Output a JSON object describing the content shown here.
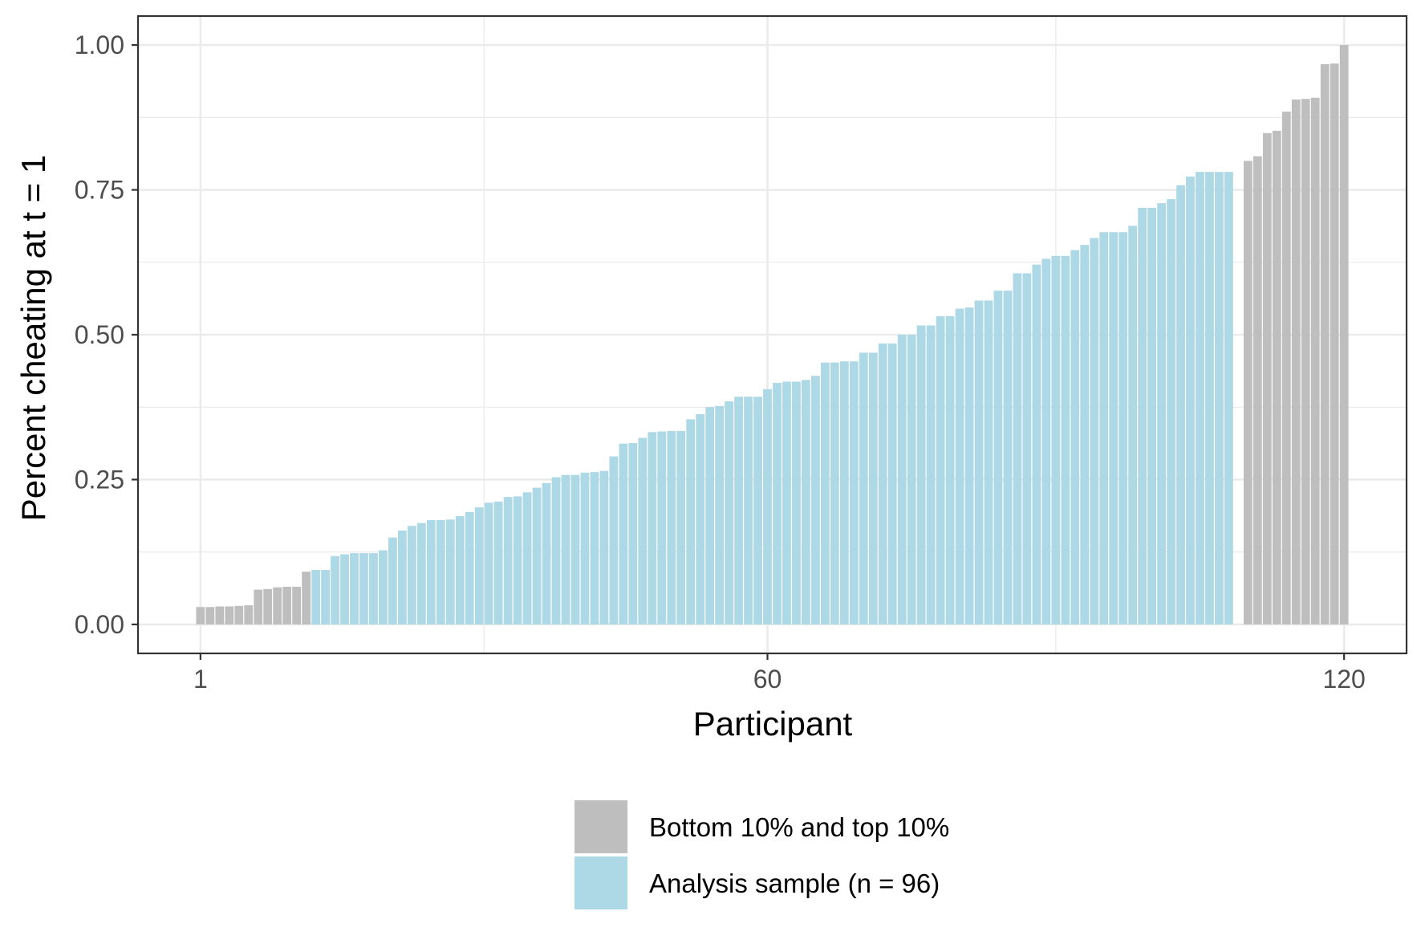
{
  "chart_data": {
    "type": "bar",
    "xlabel": "Participant",
    "ylabel": "Percent cheating at t = 1",
    "x_ticks": [
      "1",
      "60",
      "120"
    ],
    "y_ticks": [
      "0.00",
      "0.25",
      "0.50",
      "0.75",
      "1.00"
    ],
    "xlim": [
      -5.5,
      126.5
    ],
    "ylim": [
      -0.05,
      1.05
    ],
    "grid": true,
    "legend_position": "bottom",
    "series": [
      {
        "name": "Bottom 10% and top 10%",
        "color": "#bebebe",
        "x": [
          1,
          2,
          3,
          4,
          5,
          6,
          7,
          8,
          9,
          10,
          11,
          12,
          110,
          111,
          112,
          113,
          114,
          115,
          116,
          117,
          118,
          119,
          120
        ],
        "values": [
          0.03,
          0.03,
          0.031,
          0.031,
          0.032,
          0.033,
          0.06,
          0.061,
          0.064,
          0.065,
          0.065,
          0.091,
          0.8,
          0.808,
          0.848,
          0.852,
          0.885,
          0.906,
          0.907,
          0.909,
          0.967,
          0.968,
          1.0
        ]
      },
      {
        "name": "Analysis sample (n = 96)",
        "color": "#add8e6",
        "x": [
          13,
          14,
          15,
          16,
          17,
          18,
          19,
          20,
          21,
          22,
          23,
          24,
          25,
          26,
          27,
          28,
          29,
          30,
          31,
          32,
          33,
          34,
          35,
          36,
          37,
          38,
          39,
          40,
          41,
          42,
          43,
          44,
          45,
          46,
          47,
          48,
          49,
          50,
          51,
          52,
          53,
          54,
          55,
          56,
          57,
          58,
          59,
          60,
          61,
          62,
          63,
          64,
          65,
          66,
          67,
          68,
          69,
          70,
          71,
          72,
          73,
          74,
          75,
          76,
          77,
          78,
          79,
          80,
          81,
          82,
          83,
          84,
          85,
          86,
          87,
          88,
          89,
          90,
          91,
          92,
          93,
          94,
          95,
          96,
          97,
          98,
          99,
          100,
          101,
          102,
          103,
          104,
          105,
          106,
          107,
          108
        ],
        "values": [
          0.094,
          0.094,
          0.118,
          0.121,
          0.123,
          0.123,
          0.123,
          0.128,
          0.15,
          0.162,
          0.17,
          0.175,
          0.18,
          0.18,
          0.181,
          0.187,
          0.194,
          0.202,
          0.21,
          0.212,
          0.22,
          0.221,
          0.228,
          0.236,
          0.244,
          0.254,
          0.258,
          0.258,
          0.262,
          0.263,
          0.265,
          0.29,
          0.312,
          0.313,
          0.322,
          0.332,
          0.333,
          0.334,
          0.334,
          0.354,
          0.363,
          0.375,
          0.377,
          0.385,
          0.393,
          0.393,
          0.393,
          0.406,
          0.417,
          0.419,
          0.419,
          0.422,
          0.429,
          0.452,
          0.452,
          0.454,
          0.454,
          0.469,
          0.469,
          0.485,
          0.485,
          0.5,
          0.5,
          0.516,
          0.516,
          0.532,
          0.532,
          0.545,
          0.547,
          0.559,
          0.559,
          0.576,
          0.576,
          0.606,
          0.606,
          0.621,
          0.631,
          0.636,
          0.636,
          0.646,
          0.655,
          0.667,
          0.677,
          0.677,
          0.677,
          0.688,
          0.719,
          0.719,
          0.727,
          0.734,
          0.758,
          0.773,
          0.781,
          0.781,
          0.781,
          0.781
        ]
      }
    ]
  }
}
